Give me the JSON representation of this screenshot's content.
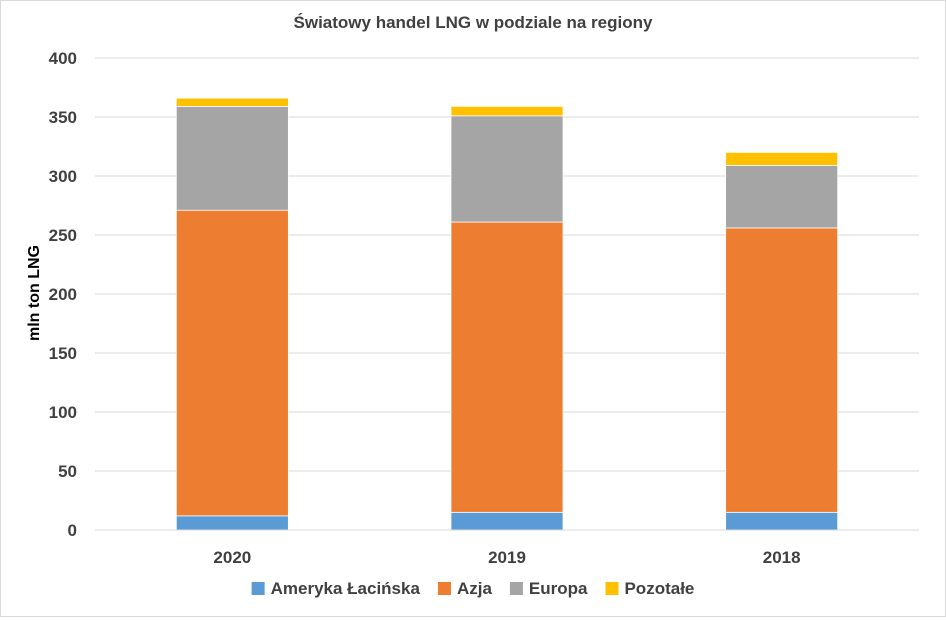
{
  "chart_data": {
    "type": "bar",
    "stacked": true,
    "title": "Światowy handel LNG w podziale na regiony",
    "xlabel": "",
    "ylabel": "mln ton LNG",
    "ylim": [
      0,
      400
    ],
    "yticks": [
      0,
      50,
      100,
      150,
      200,
      250,
      300,
      350,
      400
    ],
    "grid": true,
    "legend_position": "bottom",
    "categories": [
      "2020",
      "2019",
      "2018"
    ],
    "series": [
      {
        "name": "Ameryka Łacińska",
        "color": "#5b9bd5",
        "values": [
          12,
          15,
          15
        ]
      },
      {
        "name": "Azja",
        "color": "#ed7d31",
        "values": [
          259,
          246,
          241
        ]
      },
      {
        "name": "Europa",
        "color": "#a5a5a5",
        "values": [
          88,
          90,
          53
        ]
      },
      {
        "name": "Pozotałe",
        "color": "#ffc000",
        "values": [
          7,
          8,
          11
        ]
      }
    ]
  }
}
